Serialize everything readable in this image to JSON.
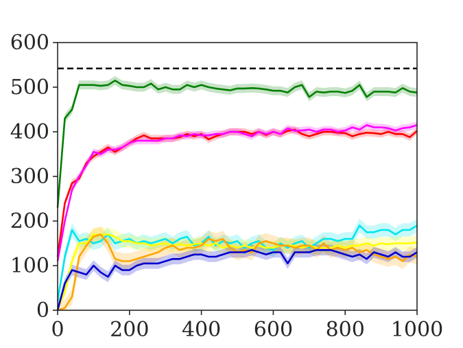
{
  "chart_data": {
    "type": "line",
    "title": "",
    "xlabel": "",
    "ylabel": "",
    "xlim": [
      0,
      1000
    ],
    "ylim": [
      0,
      600
    ],
    "xticks": [
      0,
      200,
      400,
      600,
      800,
      1000
    ],
    "yticks": [
      0,
      100,
      200,
      300,
      400,
      500,
      600
    ],
    "xtick_labels": [
      "0",
      "200",
      "400",
      "600",
      "800",
      "1000"
    ],
    "ytick_labels": [
      "0",
      "100",
      "200",
      "300",
      "400",
      "500",
      "600"
    ],
    "grid": false,
    "reference_line": {
      "y": 542,
      "style": "dashed",
      "color": "#000000"
    },
    "x": [
      0,
      20,
      40,
      60,
      80,
      100,
      120,
      140,
      160,
      180,
      200,
      220,
      240,
      260,
      280,
      300,
      320,
      340,
      360,
      380,
      400,
      420,
      440,
      460,
      480,
      500,
      520,
      540,
      560,
      580,
      600,
      620,
      640,
      660,
      680,
      700,
      720,
      740,
      760,
      780,
      800,
      820,
      840,
      860,
      880,
      900,
      920,
      940,
      960,
      980,
      1000
    ],
    "series": [
      {
        "color": "#008000",
        "band": 10,
        "values": [
          230,
          430,
          450,
          505,
          505,
          505,
          503,
          505,
          515,
          505,
          503,
          500,
          500,
          508,
          495,
          500,
          495,
          495,
          505,
          500,
          505,
          500,
          497,
          495,
          493,
          497,
          497,
          498,
          497,
          495,
          492,
          492,
          488,
          500,
          505,
          478,
          490,
          488,
          490,
          490,
          487,
          492,
          505,
          478,
          490,
          490,
          490,
          488,
          498,
          490,
          488
        ]
      },
      {
        "color": "#ff0000",
        "band": 8,
        "values": [
          120,
          240,
          285,
          295,
          330,
          345,
          355,
          365,
          355,
          365,
          375,
          385,
          392,
          385,
          385,
          385,
          385,
          388,
          395,
          390,
          395,
          383,
          390,
          395,
          400,
          400,
          400,
          395,
          400,
          393,
          400,
          395,
          402,
          405,
          395,
          390,
          395,
          400,
          400,
          398,
          397,
          390,
          395,
          398,
          397,
          395,
          400,
          395,
          395,
          388,
          402
        ]
      },
      {
        "color": "#ff00ff",
        "band": 8,
        "values": [
          110,
          200,
          270,
          300,
          325,
          355,
          350,
          360,
          360,
          365,
          375,
          380,
          380,
          380,
          380,
          385,
          385,
          392,
          390,
          395,
          392,
          392,
          395,
          395,
          400,
          400,
          395,
          390,
          400,
          395,
          400,
          395,
          408,
          402,
          403,
          405,
          400,
          405,
          405,
          400,
          403,
          410,
          405,
          415,
          410,
          410,
          408,
          403,
          408,
          410,
          415
        ]
      },
      {
        "color": "#00e5ee",
        "band": 15,
        "values": [
          20,
          120,
          180,
          155,
          160,
          150,
          155,
          170,
          150,
          155,
          160,
          150,
          155,
          150,
          155,
          160,
          150,
          160,
          165,
          145,
          150,
          165,
          145,
          155,
          150,
          155,
          140,
          150,
          155,
          140,
          135,
          150,
          140,
          150,
          155,
          140,
          150,
          160,
          160,
          155,
          160,
          160,
          190,
          175,
          175,
          180,
          180,
          170,
          180,
          180,
          190
        ]
      },
      {
        "color": "#ffff00",
        "band": 15,
        "values": [
          5,
          40,
          110,
          150,
          150,
          170,
          170,
          170,
          165,
          155,
          155,
          150,
          150,
          145,
          148,
          150,
          145,
          148,
          145,
          148,
          150,
          145,
          150,
          140,
          145,
          140,
          145,
          140,
          145,
          140,
          140,
          145,
          145,
          145,
          140,
          145,
          140,
          140,
          140,
          145,
          140,
          145,
          145,
          150,
          145,
          150,
          148,
          150,
          150,
          150,
          152
        ]
      },
      {
        "color": "#ffa500",
        "band": 18,
        "values": [
          0,
          5,
          30,
          120,
          145,
          165,
          170,
          150,
          115,
          110,
          110,
          115,
          120,
          125,
          130,
          140,
          145,
          135,
          140,
          140,
          145,
          160,
          155,
          160,
          140,
          130,
          135,
          130,
          150,
          155,
          150,
          145,
          145,
          140,
          145,
          145,
          135,
          150,
          135,
          140,
          135,
          140,
          130,
          135,
          125,
          120,
          115,
          120,
          110,
          125,
          120
        ]
      },
      {
        "color": "#0000cd",
        "band": 12,
        "values": [
          0,
          60,
          90,
          85,
          80,
          100,
          85,
          75,
          100,
          90,
          90,
          100,
          105,
          105,
          105,
          110,
          115,
          115,
          120,
          125,
          125,
          120,
          120,
          125,
          130,
          130,
          130,
          135,
          130,
          125,
          130,
          130,
          105,
          130,
          130,
          130,
          135,
          135,
          135,
          130,
          125,
          120,
          125,
          115,
          130,
          125,
          120,
          130,
          120,
          120,
          130
        ]
      }
    ]
  }
}
